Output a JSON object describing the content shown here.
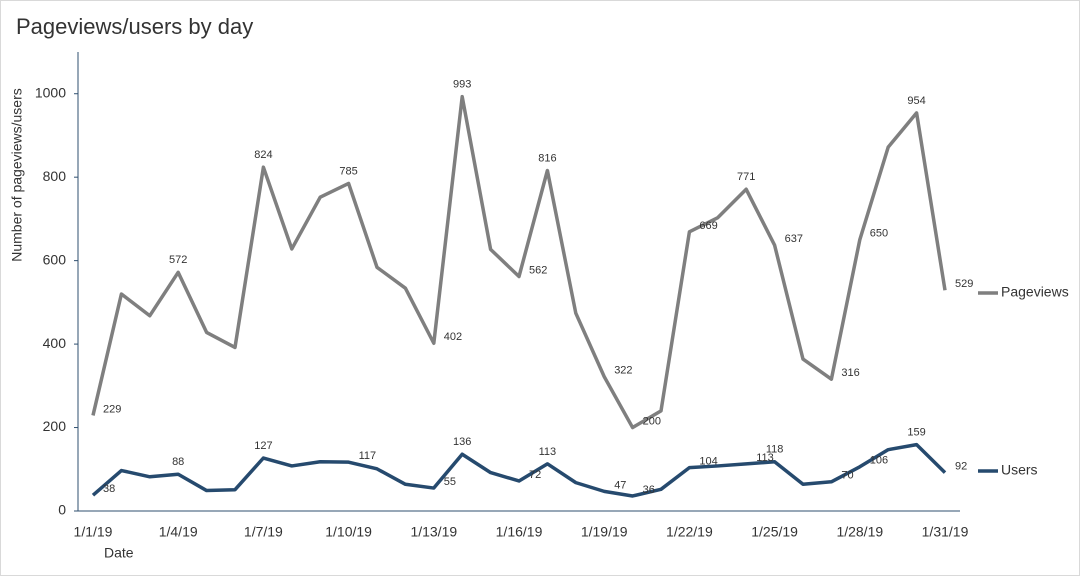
{
  "chart_data": {
    "type": "line",
    "title": "Pageviews/users by day",
    "x_label": "Date",
    "y_label": "Number of pageviews/users",
    "categories": [
      "1/1/19",
      null,
      null,
      "1/4/19",
      null,
      null,
      "1/7/19",
      null,
      null,
      "1/10/19",
      null,
      null,
      "1/13/19",
      null,
      null,
      "1/16/19",
      null,
      null,
      "1/19/19",
      null,
      null,
      "1/22/19",
      null,
      null,
      "1/25/19",
      null,
      null,
      "1/28/19",
      null,
      null,
      "1/31/19"
    ],
    "series": [
      {
        "name": "Pageviews",
        "color": "#7f7f7f",
        "values": [
          229,
          520,
          468,
          572,
          428,
          392,
          824,
          628,
          752,
          785,
          584,
          534,
          402,
          993,
          627,
          562,
          816,
          474,
          322,
          200,
          240,
          669,
          703,
          771,
          637,
          364,
          316,
          650,
          872,
          954,
          529
        ],
        "value_labels": [
          "229",
          null,
          null,
          "572",
          null,
          null,
          "824",
          null,
          null,
          "785",
          null,
          null,
          "402",
          "993",
          null,
          "562",
          "816",
          null,
          "322",
          "200",
          null,
          "669",
          null,
          "771",
          "637",
          null,
          "316",
          "650",
          null,
          "954",
          "529"
        ]
      },
      {
        "name": "Users",
        "color": "#264a6e",
        "values": [
          38,
          97,
          82,
          88,
          49,
          51,
          127,
          108,
          118,
          117,
          101,
          64,
          55,
          136,
          92,
          72,
          113,
          68,
          47,
          36,
          52,
          104,
          108,
          113,
          118,
          64,
          70,
          106,
          147,
          159,
          92
        ],
        "value_labels": [
          "38",
          null,
          null,
          "88",
          null,
          null,
          "127",
          null,
          null,
          "117",
          null,
          null,
          "55",
          "136",
          null,
          "72",
          "113",
          null,
          "47",
          "36",
          null,
          "104",
          null,
          "113",
          "118",
          null,
          "70",
          "106",
          null,
          "159",
          "92"
        ]
      }
    ],
    "ylim": [
      0,
      1100
    ],
    "yticks": [
      0,
      200,
      400,
      600,
      800,
      1000
    ],
    "grid": false,
    "legend": "right"
  }
}
